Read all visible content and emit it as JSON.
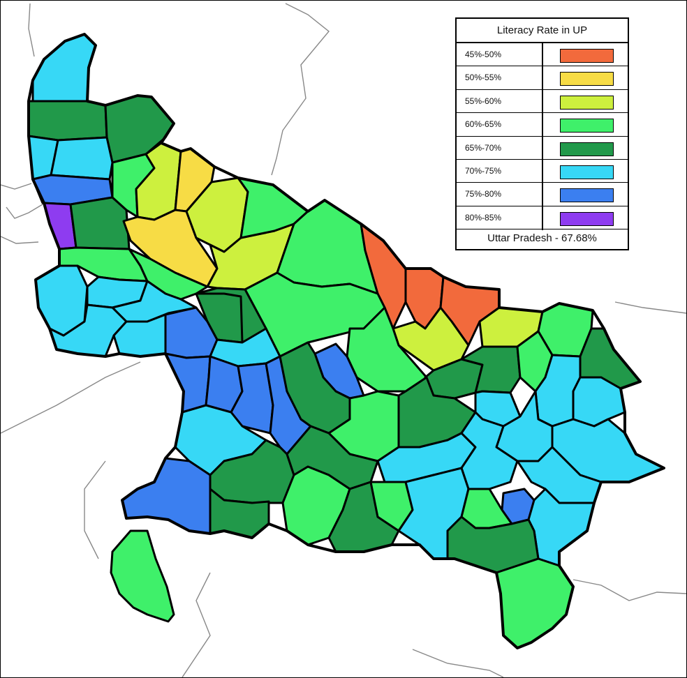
{
  "legend": {
    "title": "Literacy Rate in UP",
    "items": [
      {
        "label": "45%-50%",
        "color": "#f26a3c"
      },
      {
        "label": "50%-55%",
        "color": "#f7dc45"
      },
      {
        "label": "55%-60%",
        "color": "#cdf03e"
      },
      {
        "label": "60%-65%",
        "color": "#3ff06a"
      },
      {
        "label": "65%-70%",
        "color": "#21994a"
      },
      {
        "label": "70%-75%",
        "color": "#37d8f6"
      },
      {
        "label": "75%-80%",
        "color": "#3b7ff0"
      },
      {
        "label": "80%-85%",
        "color": "#8e3cf0"
      }
    ],
    "footer": "Uttar Pradesh - 67.68%"
  }
}
